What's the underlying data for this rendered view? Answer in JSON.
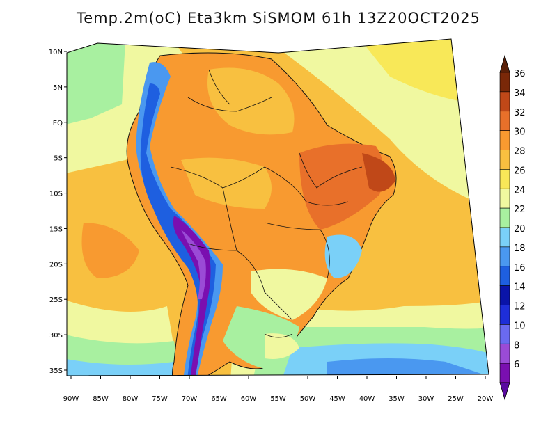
{
  "title": "Temp.2m(oC) Eta3km SiSMOM 61h 13Z20OCT2025",
  "map": {
    "variable": "Temp.2m",
    "unit": "oC",
    "lat_ticks": [
      "10N",
      "5N",
      "EQ",
      "5S",
      "10S",
      "15S",
      "20S",
      "25S",
      "30S",
      "35S"
    ],
    "lat_values": [
      10,
      5,
      0,
      -5,
      -10,
      -15,
      -20,
      -25,
      -30,
      -35
    ],
    "lon_ticks": [
      "90W",
      "85W",
      "80W",
      "75W",
      "70W",
      "65W",
      "60W",
      "55W",
      "50W",
      "45W",
      "40W",
      "35W",
      "30W",
      "25W",
      "20W"
    ],
    "lon_values": [
      -90,
      -85,
      -80,
      -75,
      -70,
      -65,
      -60,
      -55,
      -50,
      -45,
      -40,
      -35,
      -30,
      -25,
      -20
    ]
  },
  "colorbar": {
    "levels": [
      6,
      8,
      10,
      12,
      14,
      16,
      18,
      20,
      22,
      24,
      26,
      28,
      30,
      32,
      34,
      36
    ],
    "labels": [
      "6",
      "8",
      "10",
      "12",
      "14",
      "16",
      "18",
      "20",
      "22",
      "24",
      "26",
      "28",
      "30",
      "32",
      "34",
      "36"
    ],
    "colors": [
      "#7a0fb0",
      "#9a4bd6",
      "#6a6af0",
      "#1e2ed8",
      "#0a14a8",
      "#1e5fe0",
      "#4a98f0",
      "#7ad0f8",
      "#a8f0a0",
      "#f0f8a0",
      "#f8e858",
      "#f8c040",
      "#f89a30",
      "#e8702a",
      "#c04818",
      "#7a2808"
    ],
    "below_color": "#5a0aa0",
    "above_color": "#5a2008"
  }
}
